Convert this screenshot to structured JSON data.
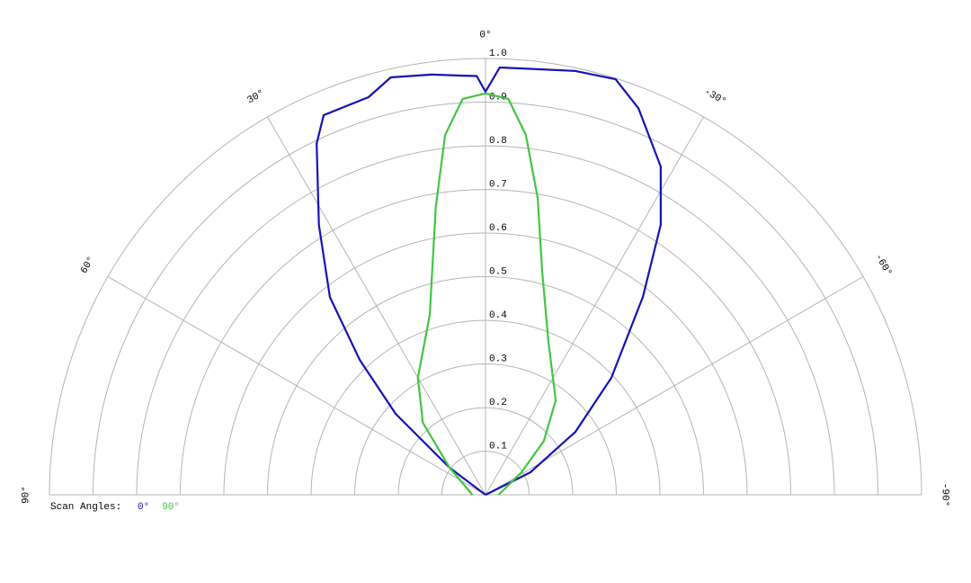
{
  "chart_data": {
    "type": "polar",
    "rlim": [
      0,
      1
    ],
    "thetalim": [
      90,
      -90
    ],
    "rticks": [
      0.1,
      0.2,
      0.3,
      0.4,
      0.5,
      0.6,
      0.7,
      0.8,
      0.9,
      {
        "value": 1,
        "label": "1.0"
      }
    ],
    "thetaticks": [
      {
        "value": 0,
        "label": "0°"
      },
      {
        "value": 30,
        "label": "30°"
      },
      {
        "value": 60,
        "label": "60°"
      },
      {
        "value": 90,
        "label": "90°"
      },
      {
        "value": -30,
        "label": "-30°"
      },
      {
        "value": -60,
        "label": "-60°"
      },
      {
        "value": -90,
        "label": "-90°"
      }
    ],
    "grid": true,
    "legend_title": "Scan Angles:",
    "series": [
      {
        "name": "0°",
        "color": "#1414b4",
        "theta": [
          90,
          53,
          48,
          43,
          38.2,
          31.7,
          25.7,
          23.1,
          16.4,
          12.8,
          7.3,
          3.1,
          1.2,
          0,
          -1.9,
          -7.2,
          -12,
          -17.4,
          -21.6,
          -28.1,
          -33,
          -38.5,
          -47.1,
          -55,
          -63.4,
          -90
        ],
        "values": [
          0,
          0.103,
          0.277,
          0.423,
          0.577,
          0.727,
          0.893,
          0.946,
          0.95,
          0.981,
          0.971,
          0.962,
          0.96,
          0.924,
          0.98,
          0.983,
          0.993,
          0.998,
          0.953,
          0.853,
          0.738,
          0.58,
          0.394,
          0.252,
          0.115,
          0
        ]
      },
      {
        "name": "90°",
        "color": "#44c444",
        "theta": [
          90,
          53,
          41,
          30,
          17.2,
          9.8,
          6.4,
          3.3,
          0,
          -3.3,
          -6.4,
          -10,
          -14.1,
          -22.4,
          -36.6,
          -47.3,
          -58,
          -90
        ],
        "values": [
          0.03,
          0.103,
          0.219,
          0.31,
          0.432,
          0.67,
          0.83,
          0.909,
          0.92,
          0.909,
          0.83,
          0.69,
          0.532,
          0.379,
          0.27,
          0.182,
          0.097,
          0.03
        ]
      }
    ]
  }
}
